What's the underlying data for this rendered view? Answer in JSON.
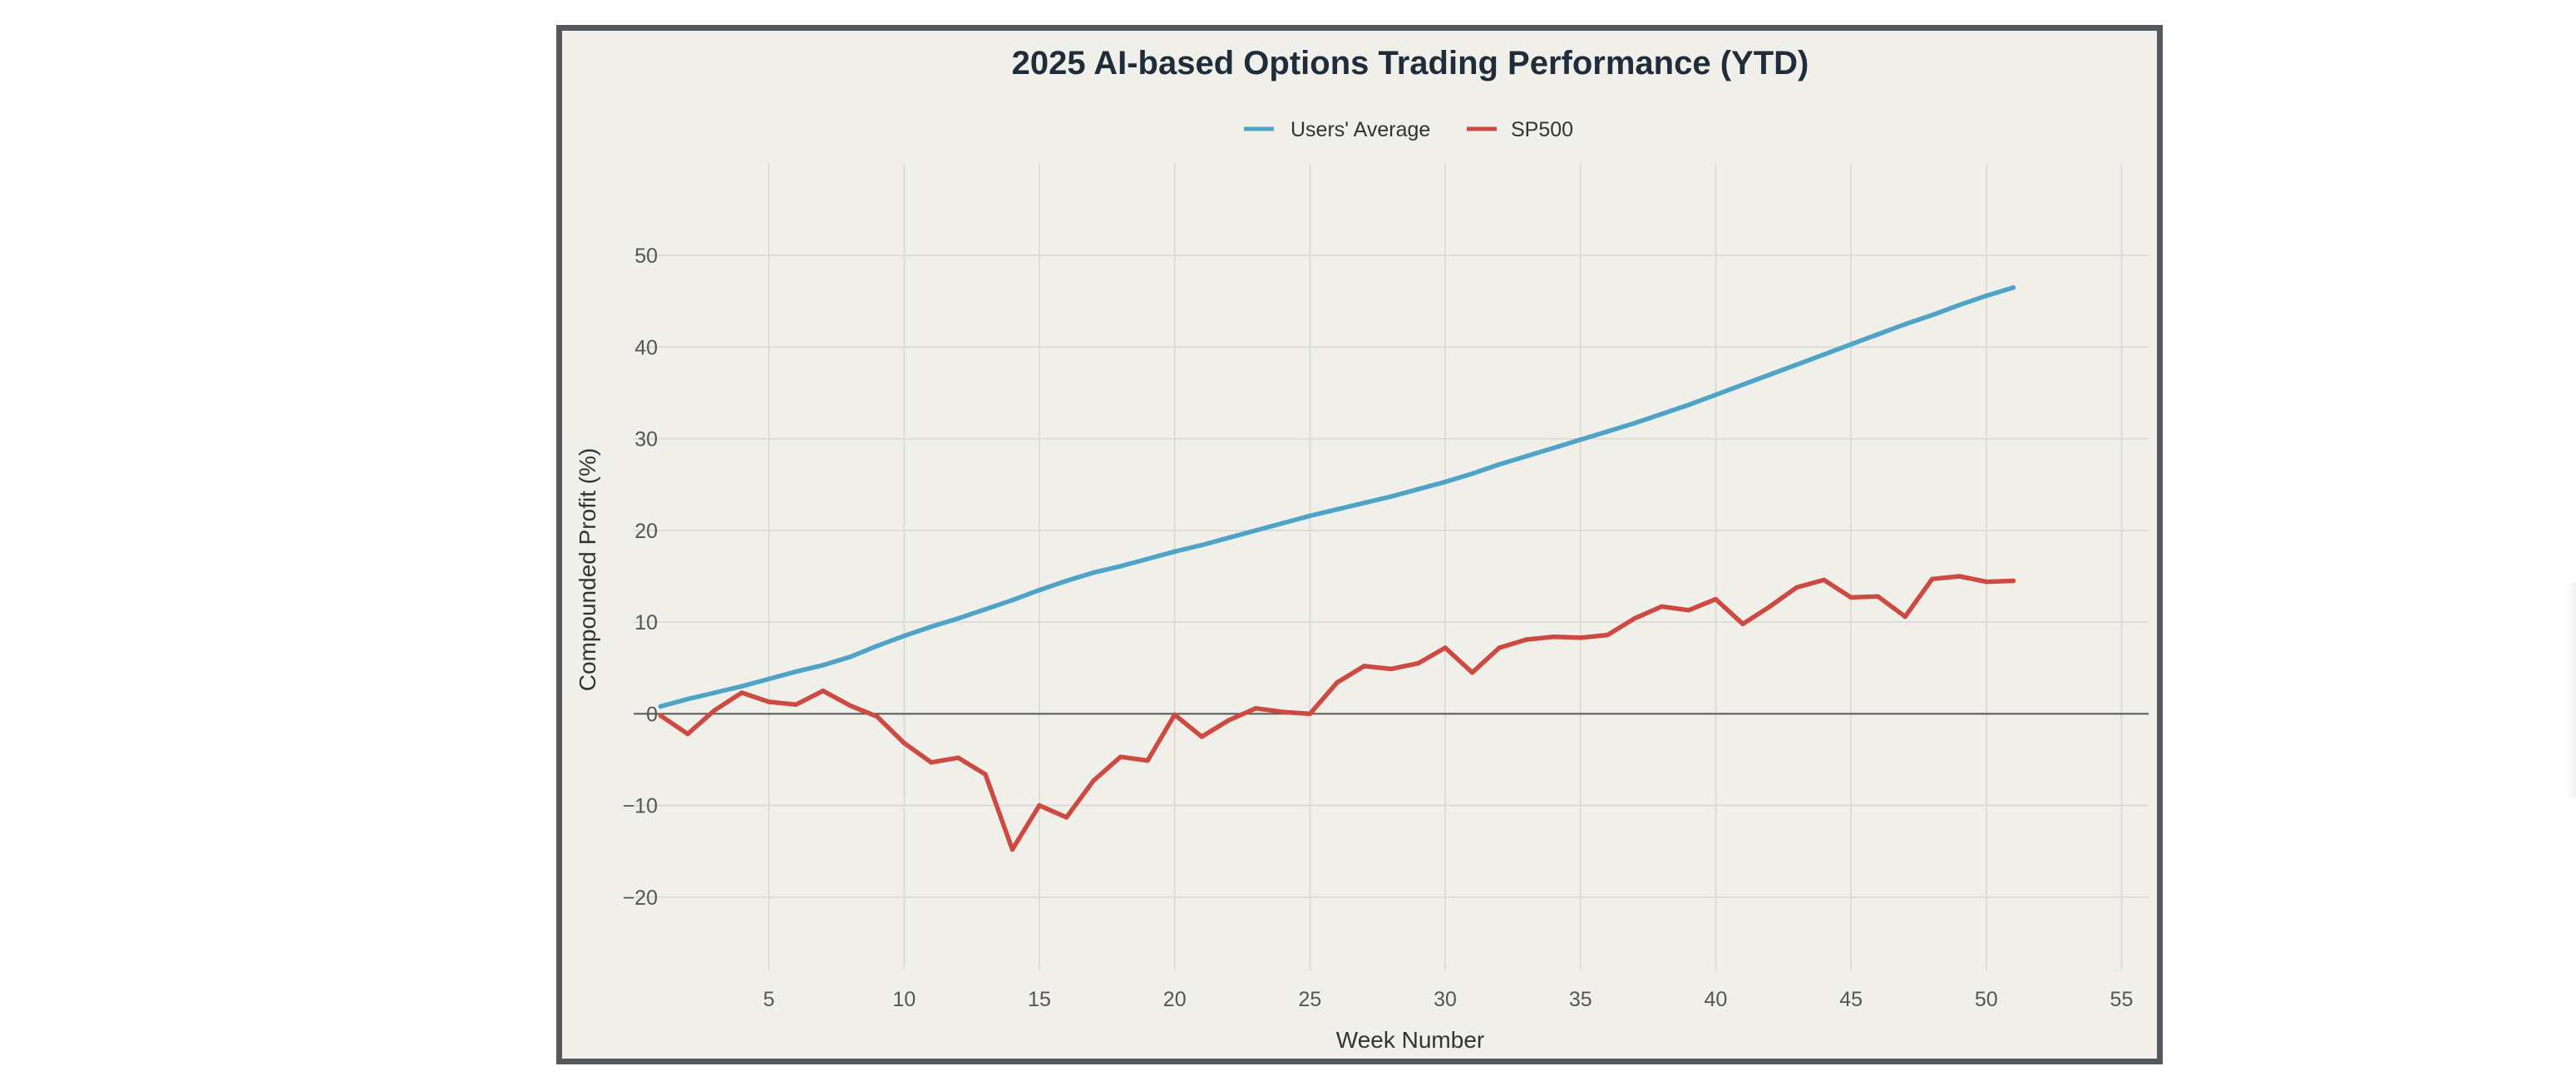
{
  "chart_data": {
    "type": "line",
    "title": "2025 AI-based Options Trading Performance (YTD)",
    "xlabel": "Week Number",
    "ylabel": "Compounded Profit (%)",
    "xlim": [
      0,
      56
    ],
    "ylim": [
      -28,
      60
    ],
    "xticks": [
      5,
      10,
      15,
      20,
      25,
      30,
      35,
      40,
      45,
      50,
      55
    ],
    "yticks": [
      -20,
      -10,
      0,
      10,
      20,
      30,
      40,
      50
    ],
    "ytick_labels": [
      "−20",
      "−10",
      "0",
      "10",
      "20",
      "30",
      "40",
      "50"
    ],
    "grid": true,
    "zero_line": true,
    "legend_position": "top-center",
    "x": [
      1,
      2,
      3,
      4,
      5,
      6,
      7,
      8,
      9,
      10,
      11,
      12,
      13,
      14,
      15,
      16,
      17,
      18,
      19,
      20,
      21,
      22,
      23,
      24,
      25,
      26,
      27,
      28,
      29,
      30,
      31,
      32,
      33,
      34,
      35,
      36,
      37,
      38,
      39,
      40,
      41,
      42,
      43,
      44,
      45,
      46,
      47,
      48,
      49,
      50,
      51
    ],
    "series": [
      {
        "name": "Users' Average",
        "color": "#4fa3c7",
        "values": [
          0.8,
          1.6,
          2.3,
          3.0,
          3.8,
          4.6,
          5.3,
          6.2,
          7.4,
          8.5,
          9.5,
          10.4,
          11.4,
          12.4,
          13.5,
          14.5,
          15.4,
          16.1,
          16.9,
          17.7,
          18.4,
          19.2,
          20.0,
          20.8,
          21.6,
          22.3,
          23.0,
          23.7,
          24.5,
          25.3,
          26.2,
          27.2,
          28.1,
          29.0,
          29.9,
          30.8,
          31.7,
          32.7,
          33.7,
          34.8,
          35.9,
          37.0,
          38.1,
          39.2,
          40.3,
          41.4,
          42.5,
          43.5,
          44.6,
          45.6,
          46.5
        ]
      },
      {
        "name": "SP500",
        "color": "#cc4a41",
        "values": [
          -0.2,
          -2.2,
          0.4,
          2.3,
          1.3,
          1.0,
          2.5,
          0.9,
          -0.3,
          -3.2,
          -5.3,
          -4.8,
          -6.6,
          -14.8,
          -10.0,
          -11.3,
          -7.3,
          -4.7,
          -5.1,
          -0.1,
          -2.5,
          -0.7,
          0.6,
          0.2,
          0.0,
          3.4,
          5.2,
          4.9,
          5.5,
          7.2,
          4.5,
          7.2,
          8.1,
          8.4,
          8.3,
          8.6,
          10.4,
          11.7,
          11.3,
          12.5,
          9.8,
          11.7,
          13.8,
          14.6,
          12.7,
          12.8,
          10.6,
          14.7,
          15.0,
          14.4,
          14.5
        ]
      }
    ]
  },
  "colors": {
    "background": "#f0efea",
    "frame_border": "#55585c",
    "grid": "#d9d8d2",
    "zero_line": "#555555",
    "title": "#1f2d3a",
    "tick_label": "#555555",
    "axis_label": "#333333"
  }
}
